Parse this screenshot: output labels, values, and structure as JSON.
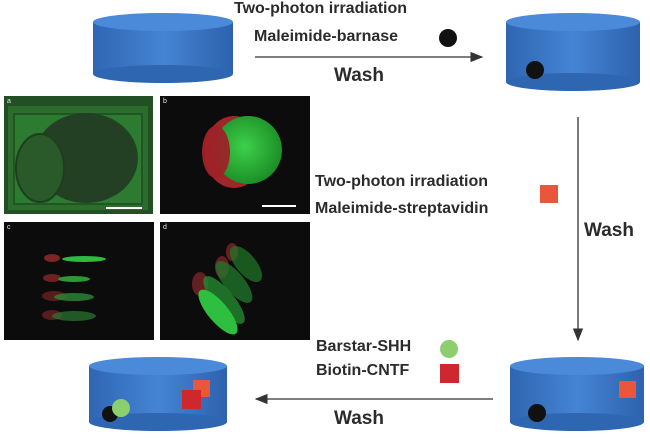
{
  "step1": {
    "line1": "Two-photon irradiation",
    "line2": "Maleimide-barnase",
    "wash": "Wash"
  },
  "step2": {
    "line1": "Two-photon irradiation",
    "line2": "Maleimide-streptavidin",
    "wash": "Wash"
  },
  "step3": {
    "line1": "Barstar-SHH",
    "line2": "Biotin-CNTF",
    "wash": "Wash"
  },
  "panels": {
    "a": "a",
    "b": "b",
    "c": "c",
    "d": "d"
  },
  "colors": {
    "cylinder_side": "#3c78c8",
    "cylinder_top": "#4a8ad8",
    "barnase": "#111111",
    "streptavidin": "#e8573c",
    "shh": "#8ccf6e",
    "cntf": "#d0262e",
    "arrow": "#333333"
  }
}
